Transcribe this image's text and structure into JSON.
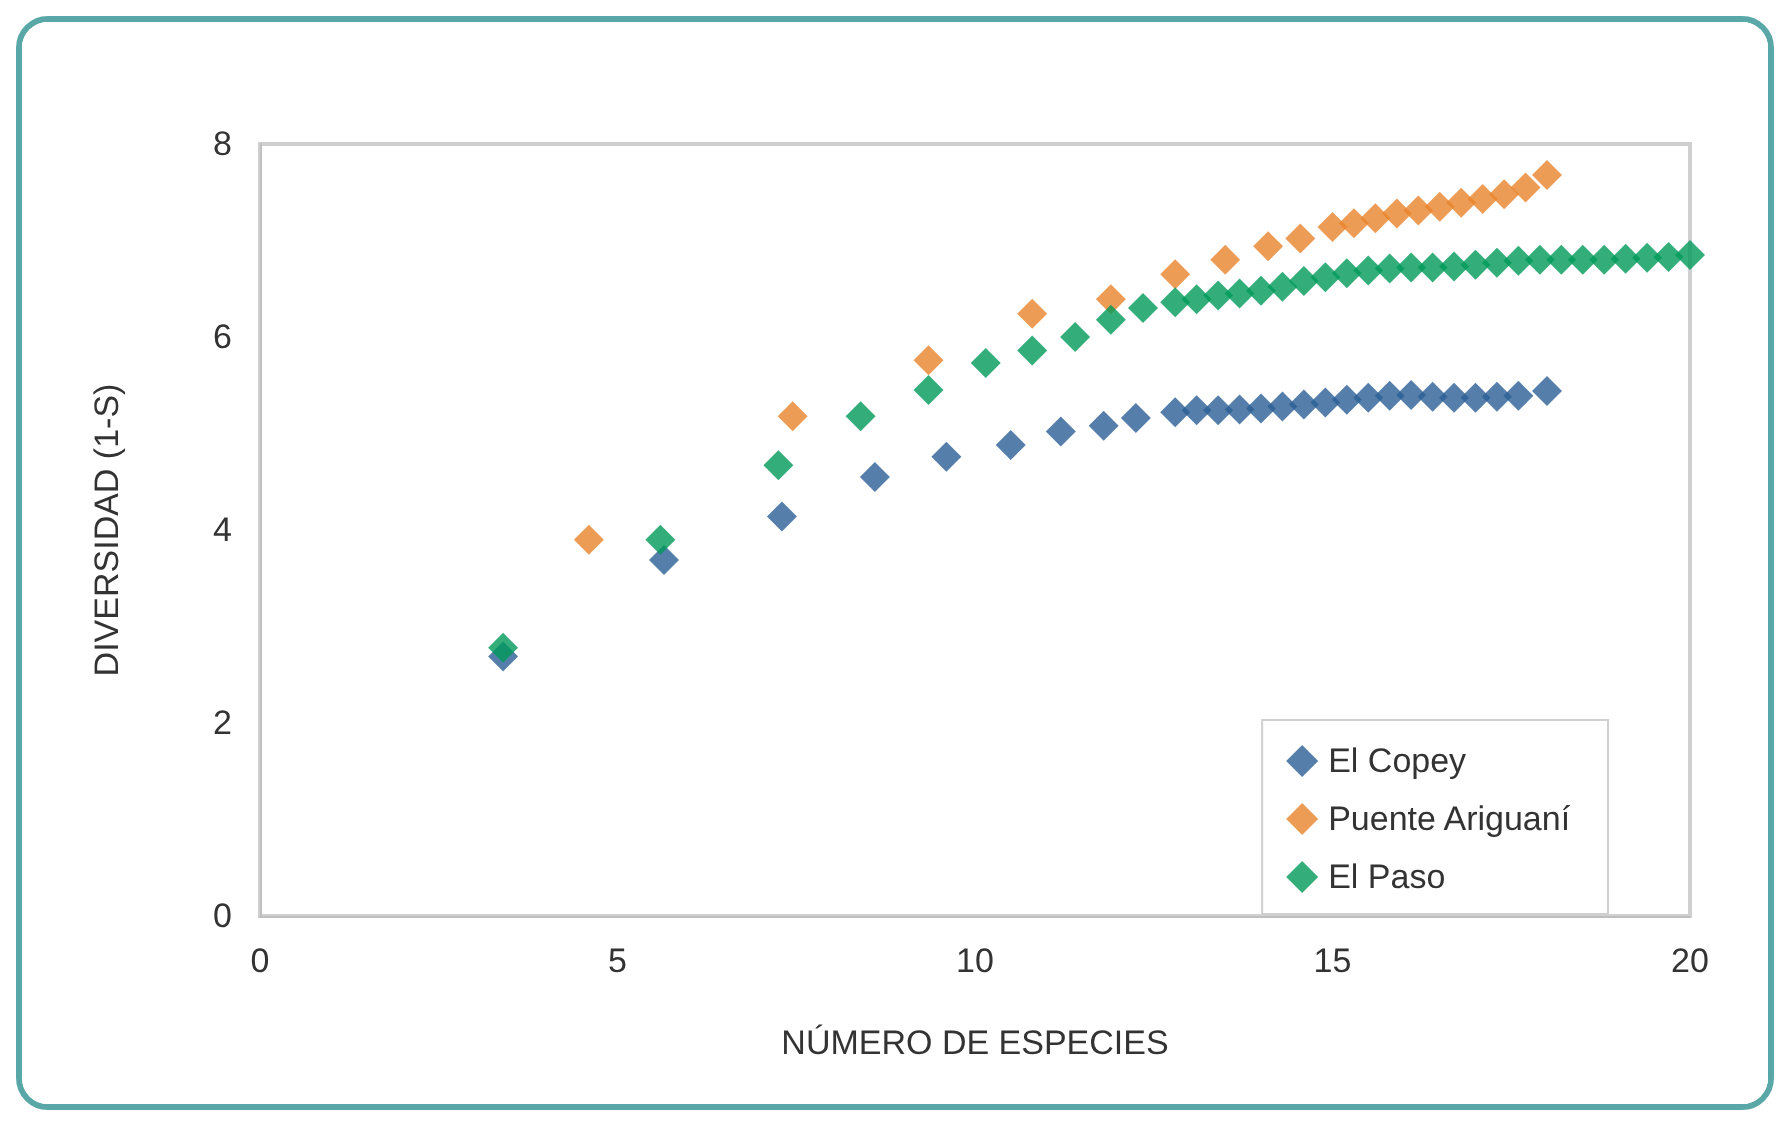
{
  "chart_data": {
    "type": "scatter",
    "xlabel": "NÚMERO DE ESPECIES",
    "ylabel": "DIVERSIDAD (1-S)",
    "xlim": [
      0,
      20
    ],
    "xticks": [
      0,
      5,
      10,
      15,
      20
    ],
    "ylim": [
      0,
      8
    ],
    "yticks": [
      0,
      2,
      4,
      6,
      8
    ],
    "grid": false,
    "legend": "bottom right",
    "marker": "diamond",
    "series": [
      {
        "name": "El Copey",
        "color": "#2a5f95",
        "x": [
          3.4,
          5.65,
          7.3,
          8.6,
          9.6,
          10.5,
          11.2,
          11.8,
          12.25,
          12.8,
          13.1,
          13.4,
          13.7,
          14.0,
          14.3,
          14.6,
          14.9,
          15.2,
          15.5,
          15.8,
          16.1,
          16.4,
          16.7,
          17.0,
          17.3,
          17.6,
          18.0
        ],
        "values": [
          2.69,
          3.69,
          4.14,
          4.55,
          4.76,
          4.88,
          5.02,
          5.08,
          5.16,
          5.22,
          5.24,
          5.24,
          5.25,
          5.26,
          5.28,
          5.3,
          5.32,
          5.35,
          5.37,
          5.39,
          5.4,
          5.38,
          5.37,
          5.37,
          5.38,
          5.39,
          5.44
        ]
      },
      {
        "name": "Puente Ariguaní",
        "color": "#e8832a",
        "x": [
          4.6,
          7.45,
          9.35,
          10.8,
          11.9,
          12.8,
          13.5,
          14.1,
          14.55,
          15.0,
          15.3,
          15.6,
          15.9,
          16.2,
          16.5,
          16.8,
          17.1,
          17.4,
          17.7,
          18.0
        ],
        "values": [
          3.9,
          5.18,
          5.76,
          6.24,
          6.39,
          6.65,
          6.8,
          6.94,
          7.02,
          7.14,
          7.18,
          7.23,
          7.28,
          7.31,
          7.35,
          7.39,
          7.43,
          7.48,
          7.55,
          7.68
        ]
      },
      {
        "name": "El Paso",
        "color": "#009a5a",
        "x": [
          3.4,
          5.6,
          7.25,
          8.4,
          9.35,
          10.15,
          10.8,
          11.4,
          11.9,
          12.35,
          12.8,
          13.1,
          13.4,
          13.7,
          14.0,
          14.3,
          14.6,
          14.9,
          15.2,
          15.5,
          15.8,
          16.1,
          16.4,
          16.7,
          17.0,
          17.3,
          17.6,
          17.9,
          18.2,
          18.5,
          18.8,
          19.1,
          19.4,
          19.7,
          20.0
        ],
        "values": [
          2.78,
          3.9,
          4.67,
          5.18,
          5.45,
          5.73,
          5.86,
          6.0,
          6.18,
          6.3,
          6.36,
          6.39,
          6.43,
          6.45,
          6.48,
          6.52,
          6.58,
          6.62,
          6.66,
          6.69,
          6.71,
          6.72,
          6.72,
          6.73,
          6.75,
          6.77,
          6.79,
          6.8,
          6.8,
          6.8,
          6.8,
          6.81,
          6.82,
          6.83,
          6.85
        ]
      }
    ]
  }
}
